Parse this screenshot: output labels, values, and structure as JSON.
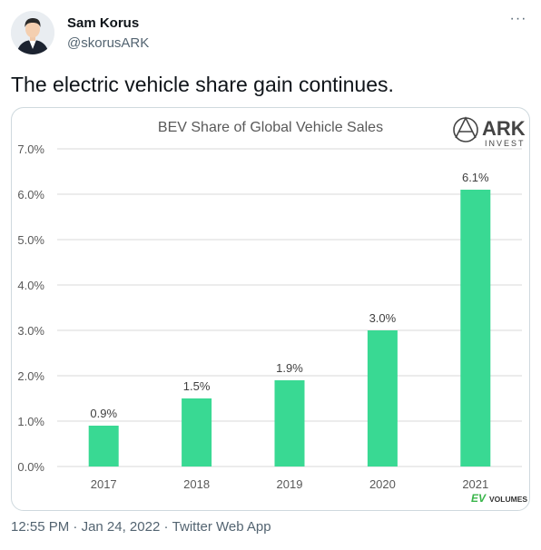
{
  "tweet": {
    "display_name": "Sam Korus",
    "handle": "@skorusARK",
    "more_label": "···",
    "text": "The electric vehicle share gain continues.",
    "time": "12:55 PM",
    "separator": "·",
    "date": "Jan 24, 2022",
    "source": "Twitter Web App"
  },
  "brand": {
    "ark_name": "ARK",
    "ark_sub": "INVEST",
    "ev_prefix": "EV",
    "ev_suffix": "VOLUMES"
  },
  "colors": {
    "bar": "#39d993",
    "ev_green": "#39b54a"
  },
  "chart_data": {
    "type": "bar",
    "title": "BEV Share of Global Vehicle Sales",
    "categories": [
      "2017",
      "2018",
      "2019",
      "2020",
      "2021"
    ],
    "values": [
      0.9,
      1.5,
      1.9,
      3.0,
      6.1
    ],
    "value_labels": [
      "0.9%",
      "1.5%",
      "1.9%",
      "3.0%",
      "6.1%"
    ],
    "yticks": [
      0,
      1,
      2,
      3,
      4,
      5,
      6,
      7
    ],
    "ytick_labels": [
      "0.0%",
      "1.0%",
      "2.0%",
      "3.0%",
      "4.0%",
      "5.0%",
      "6.0%",
      "7.0%"
    ],
    "ylim": [
      0,
      7
    ],
    "xlabel": "",
    "ylabel": "",
    "grid": true
  }
}
